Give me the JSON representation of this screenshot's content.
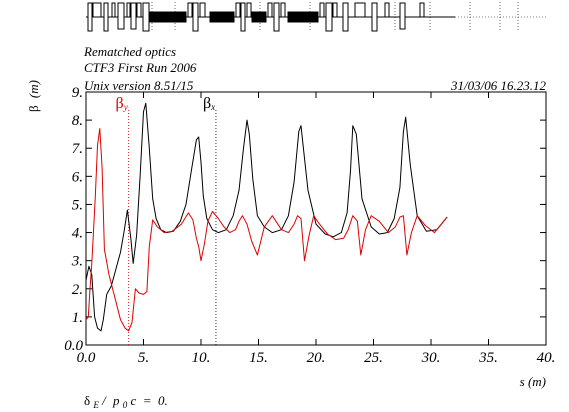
{
  "header": {
    "line1": "Rematched optics",
    "line2": "CTF3 First Run 2006",
    "line3": "Unix version 8.51/15",
    "timestamp": "31/03/06  16.23.12"
  },
  "footer": {
    "delta": "δ",
    "sub_e": "E",
    "slash": "/",
    "p": "p",
    "sub_0": "0",
    "rest": "c  =  0."
  },
  "chart_data": {
    "type": "line",
    "title": "",
    "ylabel_symbol": "β",
    "ylabel_unit": "(m)",
    "xlabel": "s (m)",
    "xlim": [
      0,
      40
    ],
    "ylim": [
      0,
      9
    ],
    "xticks": [
      0,
      5,
      10,
      15,
      20,
      25,
      30,
      35,
      40
    ],
    "xtick_labels": [
      "0.0",
      "5.",
      "10.",
      "15.",
      "20.",
      "25.",
      "30.",
      "35.",
      "40."
    ],
    "yticks": [
      0,
      1,
      2,
      3,
      4,
      5,
      6,
      7,
      8,
      9
    ],
    "ytick_labels": [
      "0.0",
      "1.",
      "2.",
      "3.",
      "4.",
      "5.",
      "6.",
      "7.",
      "8.",
      "9."
    ],
    "grid": false,
    "legend": [
      {
        "symbol": "β",
        "sub": "y",
        "color": "#dd0000",
        "x": 3.7
      },
      {
        "symbol": "β",
        "sub": "x",
        "color": "#000000",
        "x": 11.3
      }
    ],
    "colors": {
      "beta_x": "#000000",
      "beta_y": "#dd0000"
    },
    "series": [
      {
        "color": "#000000",
        "x": [
          0,
          0.25,
          0.5,
          0.75,
          1.0,
          1.3,
          1.5,
          1.8,
          2.2,
          2.6,
          3.0,
          3.3,
          3.6,
          3.9,
          4.1,
          4.4,
          4.7,
          5.0,
          5.2,
          5.5,
          5.8,
          6.1,
          6.5,
          7.0,
          7.6,
          8.2,
          8.7,
          9.2,
          9.6,
          9.8,
          10.0,
          10.2,
          10.5,
          11.0,
          11.5,
          12.2,
          12.8,
          13.3,
          13.7,
          14.0,
          14.2,
          14.5,
          14.9,
          15.5,
          16.2,
          17.0,
          17.6,
          18.1,
          18.5,
          18.7,
          18.9,
          19.3,
          20.0,
          20.8,
          21.5,
          22.2,
          22.7,
          23.0,
          23.2,
          23.5,
          24.0,
          24.8,
          25.5,
          26.2,
          26.8,
          27.3,
          27.6,
          27.8,
          28.2,
          28.8,
          29.6,
          30.5,
          31.4
        ],
        "y": [
          2.3,
          2.8,
          2.5,
          1.0,
          0.6,
          0.5,
          0.9,
          1.8,
          2.1,
          2.7,
          3.3,
          4.0,
          4.8,
          3.8,
          2.9,
          3.9,
          6.0,
          8.3,
          8.6,
          7.0,
          5.2,
          4.5,
          4.1,
          4.0,
          4.05,
          4.4,
          5.0,
          6.3,
          7.3,
          7.4,
          6.5,
          5.3,
          4.5,
          4.1,
          4.0,
          4.1,
          4.6,
          5.5,
          7.0,
          8.0,
          7.5,
          5.9,
          4.6,
          4.2,
          4.0,
          4.1,
          4.6,
          5.8,
          7.6,
          7.8,
          7.0,
          5.5,
          4.3,
          3.95,
          3.85,
          4.0,
          4.7,
          6.2,
          7.8,
          7.5,
          5.2,
          4.2,
          3.95,
          4.0,
          4.5,
          5.6,
          7.6,
          8.1,
          6.4,
          4.6,
          4.05,
          4.1,
          4.55
        ]
      },
      {
        "color": "#dd0000",
        "x": [
          0,
          0.2,
          0.35,
          0.5,
          0.8,
          1.0,
          1.2,
          1.4,
          1.6,
          2.0,
          2.5,
          3.0,
          3.4,
          3.7,
          4.0,
          4.3,
          4.6,
          5.0,
          5.3,
          5.5,
          5.8,
          6.2,
          6.8,
          7.5,
          8.3,
          8.9,
          9.3,
          9.6,
          9.8,
          10.0,
          10.3,
          10.6,
          11.0,
          11.5,
          12.0,
          12.5,
          13.0,
          13.3,
          13.6,
          14.0,
          14.4,
          14.9,
          15.5,
          16.2,
          17.0,
          17.6,
          18.1,
          18.4,
          18.7,
          19.0,
          19.4,
          19.8,
          20.3,
          21.0,
          21.7,
          22.4,
          22.8,
          23.2,
          23.6,
          23.9,
          24.3,
          24.8,
          25.5,
          26.3,
          26.9,
          27.3,
          27.6,
          27.9,
          28.3,
          28.8,
          29.5,
          30.3,
          31.4
        ],
        "y": [
          0.9,
          1.0,
          2.0,
          2.9,
          5.2,
          7.1,
          7.7,
          6.3,
          3.4,
          2.5,
          1.7,
          0.9,
          0.6,
          0.5,
          0.8,
          2.0,
          1.85,
          1.8,
          1.9,
          3.5,
          4.45,
          4.2,
          4.0,
          4.05,
          4.3,
          4.7,
          4.45,
          3.8,
          3.5,
          3.0,
          3.6,
          4.4,
          4.75,
          4.5,
          4.2,
          4.0,
          4.1,
          4.4,
          4.6,
          4.3,
          3.7,
          3.2,
          4.2,
          4.6,
          4.1,
          4.0,
          4.3,
          4.6,
          4.5,
          3.0,
          3.9,
          4.6,
          4.3,
          3.95,
          3.75,
          3.8,
          4.1,
          4.6,
          4.4,
          3.2,
          4.1,
          4.6,
          4.4,
          4.0,
          4.2,
          4.55,
          4.6,
          3.2,
          4.0,
          4.6,
          4.25,
          4.0,
          4.55
        ]
      }
    ]
  }
}
